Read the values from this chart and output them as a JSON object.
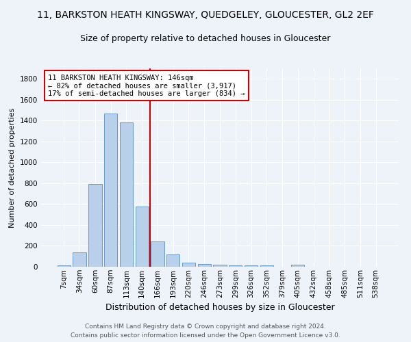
{
  "title": "11, BARKSTON HEATH KINGSWAY, QUEDGELEY, GLOUCESTER, GL2 2EF",
  "subtitle": "Size of property relative to detached houses in Gloucester",
  "xlabel": "Distribution of detached houses by size in Gloucester",
  "ylabel": "Number of detached properties",
  "footer_line1": "Contains HM Land Registry data © Crown copyright and database right 2024.",
  "footer_line2": "Contains public sector information licensed under the Open Government Licence v3.0.",
  "bar_labels": [
    "7sqm",
    "34sqm",
    "60sqm",
    "87sqm",
    "113sqm",
    "140sqm",
    "166sqm",
    "193sqm",
    "220sqm",
    "246sqm",
    "273sqm",
    "299sqm",
    "326sqm",
    "352sqm",
    "379sqm",
    "405sqm",
    "432sqm",
    "458sqm",
    "485sqm",
    "511sqm",
    "538sqm"
  ],
  "bar_values": [
    10,
    135,
    790,
    1470,
    1380,
    575,
    245,
    115,
    40,
    25,
    20,
    10,
    15,
    10,
    0,
    20,
    0,
    0,
    0,
    0,
    0
  ],
  "bar_color": "#b8d0ea",
  "bar_edge_color": "#6699cc",
  "vline_x": 5.5,
  "vline_color": "#cc0000",
  "annotation_text": "11 BARKSTON HEATH KINGSWAY: 146sqm\n← 82% of detached houses are smaller (3,917)\n17% of semi-detached houses are larger (834) →",
  "annotation_box_color": "#ffffff",
  "annotation_box_edge": "#cc0000",
  "ylim": [
    0,
    1900
  ],
  "background_color": "#eef2f9",
  "axes_background": "#eef2f9",
  "grid_color": "#ffffff",
  "title_fontsize": 10,
  "subtitle_fontsize": 9,
  "ylabel_fontsize": 8,
  "xlabel_fontsize": 9,
  "tick_fontsize": 7.5,
  "footer_fontsize": 6.5
}
